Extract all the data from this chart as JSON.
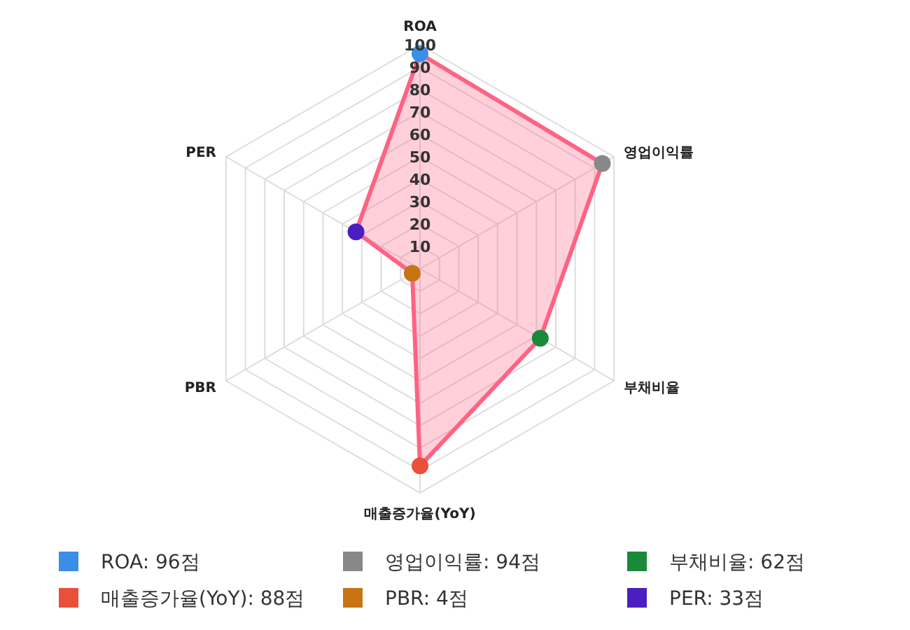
{
  "chart_data": {
    "type": "radar",
    "categories": [
      "ROA",
      "영업이익률",
      "부채비율",
      "매출증가율(YoY)",
      "PBR",
      "PER"
    ],
    "series": [
      {
        "color": "#ff6384",
        "values": [
          96,
          94,
          62,
          88,
          4,
          33
        ],
        "colors": [
          "#3a8ee6",
          "#888888",
          "#1a8a3a",
          "#e8503a",
          "#c87414",
          "#4a1ec0"
        ]
      }
    ],
    "annotations": [
      "ROA: 96점",
      "영업이익률: 94점",
      "부채비율: 62점",
      "매출증가율(YoY): 88점",
      "PBR: 4점",
      "PER: 33점"
    ],
    "ylim": [
      0,
      100
    ],
    "yticks": [
      10,
      20,
      30,
      40,
      50,
      60,
      70,
      80,
      90,
      100
    ],
    "grid": true,
    "marker": "circle"
  }
}
